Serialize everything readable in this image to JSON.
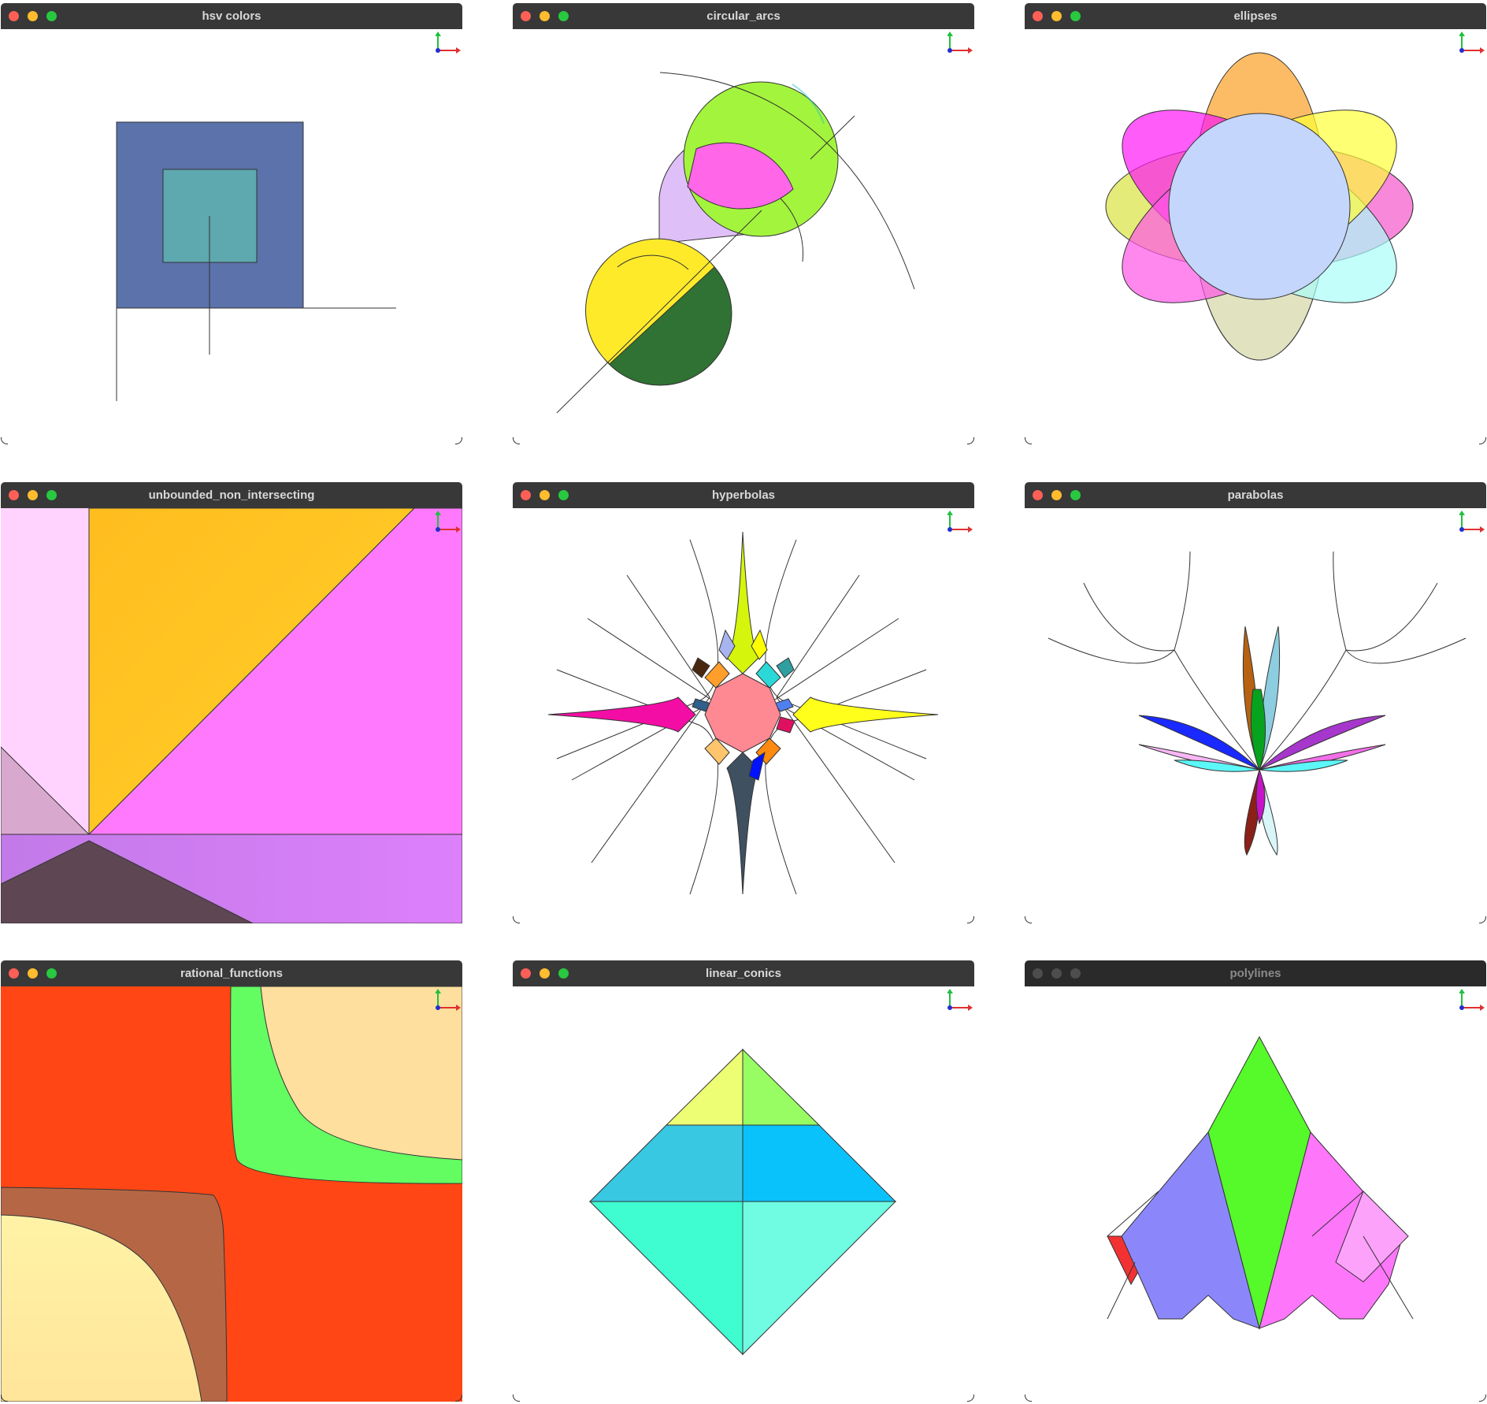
{
  "windows": [
    {
      "title": "hsv colors",
      "active": true
    },
    {
      "title": "circular_arcs",
      "active": true
    },
    {
      "title": "ellipses",
      "active": true
    },
    {
      "title": "unbounded_non_intersecting",
      "active": true
    },
    {
      "title": "hyperbolas",
      "active": true
    },
    {
      "title": "parabolas",
      "active": true
    },
    {
      "title": "rational_functions",
      "active": true
    },
    {
      "title": "linear_conics",
      "active": true
    },
    {
      "title": "polylines",
      "active": false
    }
  ],
  "icons": {
    "traffic_lights": [
      "close-icon",
      "minimize-icon",
      "maximize-icon"
    ],
    "axes": "axes-gizmo-icon"
  },
  "colors": {
    "titlebar": "#383838",
    "close": "#fe5f57",
    "minimize": "#febc2e",
    "maximize": "#28c840"
  }
}
